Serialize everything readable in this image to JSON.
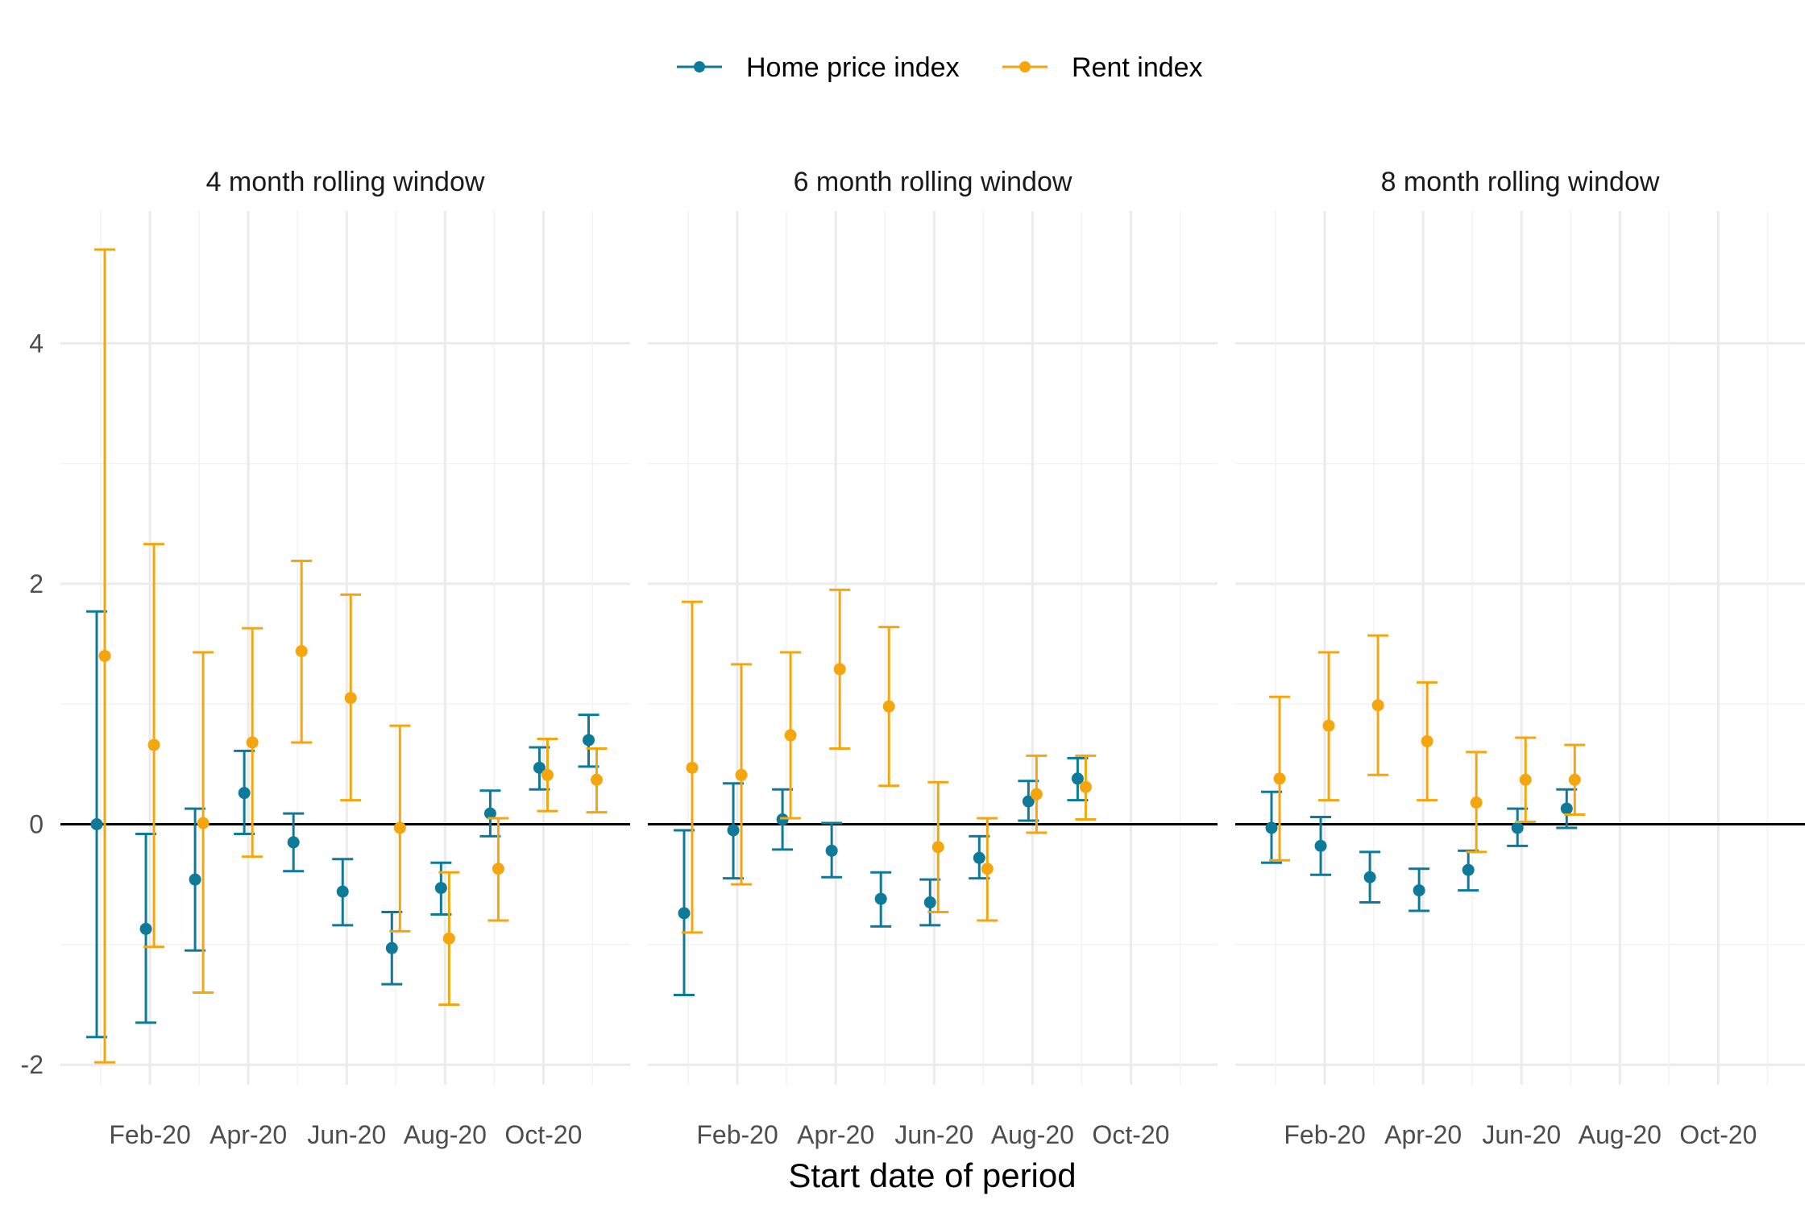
{
  "chart_data": {
    "type": "scatter",
    "xlabel": "Start date of period",
    "ylabel": "",
    "ylim": [
      -2.2,
      5.0
    ],
    "y_ticks": [
      "-2",
      "0",
      "2",
      "4"
    ],
    "y_tick_values": [
      -2,
      0,
      2,
      4
    ],
    "x_categories": [
      "Jan-20",
      "Feb-20",
      "Mar-20",
      "Apr-20",
      "May-20",
      "Jun-20",
      "Jul-20",
      "Aug-20",
      "Sep-20",
      "Oct-20",
      "Nov-20"
    ],
    "x_tick_labels": [
      "Feb-20",
      "Apr-20",
      "Jun-20",
      "Aug-20",
      "Oct-20"
    ],
    "x_tick_positions": [
      "Feb-20",
      "Apr-20",
      "Jun-20",
      "Aug-20",
      "Oct-20"
    ],
    "reference_line_y": 0,
    "legend_position": "top",
    "colors": {
      "home": "#0e7a9a",
      "rent": "#f5a60f",
      "zero_line": "#000000",
      "grid_major": "#ebebeb",
      "grid_minor": "#f2f2f2"
    },
    "legend": [
      {
        "key": "home",
        "label": "Home price index"
      },
      {
        "key": "rent",
        "label": "Rent index"
      }
    ],
    "panels": [
      {
        "title": "4 month rolling window",
        "series": [
          {
            "key": "home",
            "name": "Home price index",
            "points": [
              {
                "x": "Jan-20",
                "y": 0.0,
                "lo": -1.77,
                "hi": 1.77
              },
              {
                "x": "Feb-20",
                "y": -0.87,
                "lo": -1.65,
                "hi": -0.08
              },
              {
                "x": "Mar-20",
                "y": -0.46,
                "lo": -1.05,
                "hi": 0.13
              },
              {
                "x": "Apr-20",
                "y": 0.26,
                "lo": -0.08,
                "hi": 0.61
              },
              {
                "x": "May-20",
                "y": -0.15,
                "lo": -0.39,
                "hi": 0.09
              },
              {
                "x": "Jun-20",
                "y": -0.56,
                "lo": -0.84,
                "hi": -0.29
              },
              {
                "x": "Jul-20",
                "y": -1.03,
                "lo": -1.33,
                "hi": -0.73
              },
              {
                "x": "Aug-20",
                "y": -0.53,
                "lo": -0.75,
                "hi": -0.32
              },
              {
                "x": "Sep-20",
                "y": 0.09,
                "lo": -0.1,
                "hi": 0.28
              },
              {
                "x": "Oct-20",
                "y": 0.47,
                "lo": 0.29,
                "hi": 0.64
              },
              {
                "x": "Nov-20",
                "y": 0.7,
                "lo": 0.48,
                "hi": 0.91
              }
            ]
          },
          {
            "key": "rent",
            "name": "Rent index",
            "points": [
              {
                "x": "Jan-20",
                "y": 1.4,
                "lo": -1.98,
                "hi": 4.78
              },
              {
                "x": "Feb-20",
                "y": 0.66,
                "lo": -1.02,
                "hi": 2.33
              },
              {
                "x": "Mar-20",
                "y": 0.01,
                "lo": -1.4,
                "hi": 1.43
              },
              {
                "x": "Apr-20",
                "y": 0.68,
                "lo": -0.27,
                "hi": 1.63
              },
              {
                "x": "May-20",
                "y": 1.44,
                "lo": 0.68,
                "hi": 2.19
              },
              {
                "x": "Jun-20",
                "y": 1.05,
                "lo": 0.2,
                "hi": 1.91
              },
              {
                "x": "Jul-20",
                "y": -0.03,
                "lo": -0.89,
                "hi": 0.82
              },
              {
                "x": "Aug-20",
                "y": -0.95,
                "lo": -1.5,
                "hi": -0.4
              },
              {
                "x": "Sep-20",
                "y": -0.37,
                "lo": -0.8,
                "hi": 0.05
              },
              {
                "x": "Oct-20",
                "y": 0.41,
                "lo": 0.11,
                "hi": 0.71
              },
              {
                "x": "Nov-20",
                "y": 0.37,
                "lo": 0.1,
                "hi": 0.63
              }
            ]
          }
        ]
      },
      {
        "title": "6 month rolling window",
        "series": [
          {
            "key": "home",
            "name": "Home price index",
            "points": [
              {
                "x": "Jan-20",
                "y": -0.74,
                "lo": -1.42,
                "hi": -0.05
              },
              {
                "x": "Feb-20",
                "y": -0.05,
                "lo": -0.45,
                "hi": 0.34
              },
              {
                "x": "Mar-20",
                "y": 0.04,
                "lo": -0.21,
                "hi": 0.29
              },
              {
                "x": "Apr-20",
                "y": -0.22,
                "lo": -0.44,
                "hi": 0.01
              },
              {
                "x": "May-20",
                "y": -0.62,
                "lo": -0.85,
                "hi": -0.4
              },
              {
                "x": "Jun-20",
                "y": -0.65,
                "lo": -0.84,
                "hi": -0.46
              },
              {
                "x": "Jul-20",
                "y": -0.28,
                "lo": -0.45,
                "hi": -0.1
              },
              {
                "x": "Aug-20",
                "y": 0.19,
                "lo": 0.03,
                "hi": 0.36
              },
              {
                "x": "Sep-20",
                "y": 0.38,
                "lo": 0.2,
                "hi": 0.55
              }
            ]
          },
          {
            "key": "rent",
            "name": "Rent index",
            "points": [
              {
                "x": "Jan-20",
                "y": 0.47,
                "lo": -0.9,
                "hi": 1.85
              },
              {
                "x": "Feb-20",
                "y": 0.41,
                "lo": -0.5,
                "hi": 1.33
              },
              {
                "x": "Mar-20",
                "y": 0.74,
                "lo": 0.05,
                "hi": 1.43
              },
              {
                "x": "Apr-20",
                "y": 1.29,
                "lo": 0.63,
                "hi": 1.95
              },
              {
                "x": "May-20",
                "y": 0.98,
                "lo": 0.32,
                "hi": 1.64
              },
              {
                "x": "Jun-20",
                "y": -0.19,
                "lo": -0.73,
                "hi": 0.35
              },
              {
                "x": "Jul-20",
                "y": -0.37,
                "lo": -0.8,
                "hi": 0.05
              },
              {
                "x": "Aug-20",
                "y": 0.25,
                "lo": -0.07,
                "hi": 0.57
              },
              {
                "x": "Sep-20",
                "y": 0.31,
                "lo": 0.04,
                "hi": 0.57
              }
            ]
          }
        ]
      },
      {
        "title": "8 month rolling window",
        "series": [
          {
            "key": "home",
            "name": "Home price index",
            "points": [
              {
                "x": "Jan-20",
                "y": -0.03,
                "lo": -0.32,
                "hi": 0.27
              },
              {
                "x": "Feb-20",
                "y": -0.18,
                "lo": -0.42,
                "hi": 0.06
              },
              {
                "x": "Mar-20",
                "y": -0.44,
                "lo": -0.65,
                "hi": -0.23
              },
              {
                "x": "Apr-20",
                "y": -0.55,
                "lo": -0.72,
                "hi": -0.37
              },
              {
                "x": "May-20",
                "y": -0.38,
                "lo": -0.55,
                "hi": -0.22
              },
              {
                "x": "Jun-20",
                "y": -0.03,
                "lo": -0.18,
                "hi": 0.13
              },
              {
                "x": "Jul-20",
                "y": 0.13,
                "lo": -0.03,
                "hi": 0.29
              }
            ]
          },
          {
            "key": "rent",
            "name": "Rent index",
            "points": [
              {
                "x": "Jan-20",
                "y": 0.38,
                "lo": -0.3,
                "hi": 1.06
              },
              {
                "x": "Feb-20",
                "y": 0.82,
                "lo": 0.2,
                "hi": 1.43
              },
              {
                "x": "Mar-20",
                "y": 0.99,
                "lo": 0.41,
                "hi": 1.57
              },
              {
                "x": "Apr-20",
                "y": 0.69,
                "lo": 0.2,
                "hi": 1.18
              },
              {
                "x": "May-20",
                "y": 0.18,
                "lo": -0.23,
                "hi": 0.6
              },
              {
                "x": "Jun-20",
                "y": 0.37,
                "lo": 0.02,
                "hi": 0.72
              },
              {
                "x": "Jul-20",
                "y": 0.37,
                "lo": 0.08,
                "hi": 0.66
              }
            ]
          }
        ]
      }
    ]
  }
}
